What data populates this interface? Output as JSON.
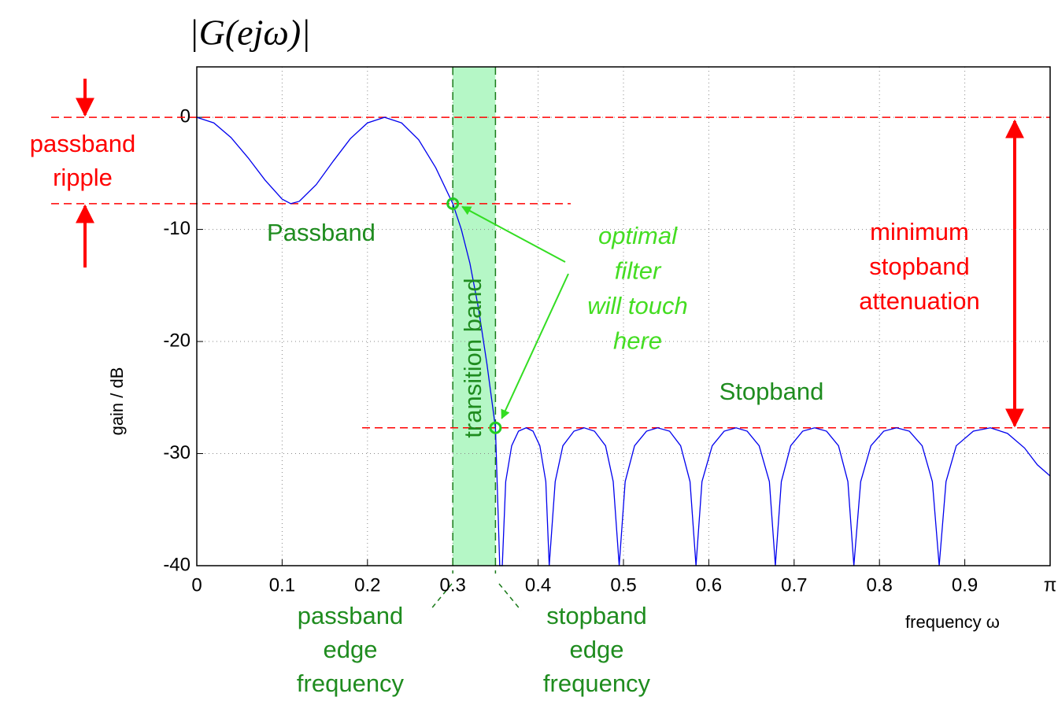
{
  "chart_data": {
    "type": "line",
    "title": "|G(ejω)|",
    "x_label": "frequency ω",
    "y_label": "gain / dB",
    "xlim": [
      0,
      1
    ],
    "ylim": [
      -40,
      4.5
    ],
    "xticks": [
      0,
      0.1,
      0.2,
      0.3,
      0.4,
      0.5,
      0.6,
      0.7,
      0.8,
      0.9,
      {
        "value": 1,
        "label": "π"
      }
    ],
    "yticks": [
      -40,
      -30,
      -20,
      -10,
      0
    ],
    "grid": true,
    "passband_edge": 0.3,
    "stopband_edge": 0.35,
    "passband_ripple_db": -7.7,
    "stopband_level_db": -27.7,
    "series": [
      {
        "color": "#0000ee",
        "x": [
          0,
          0.02,
          0.04,
          0.06,
          0.08,
          0.1,
          0.11,
          0.12,
          0.14,
          0.16,
          0.18,
          0.2,
          0.22,
          0.24,
          0.26,
          0.28,
          0.3,
          0.31,
          0.32,
          0.33,
          0.34,
          0.35,
          0.355,
          0.358,
          0.362,
          0.369,
          0.377,
          0.386,
          0.394,
          0.402,
          0.409,
          0.413,
          0.42,
          0.429,
          0.442,
          0.454,
          0.466,
          0.479,
          0.488,
          0.495,
          0.502,
          0.513,
          0.527,
          0.54,
          0.554,
          0.567,
          0.578,
          0.585,
          0.592,
          0.604,
          0.618,
          0.632,
          0.645,
          0.659,
          0.671,
          0.678,
          0.685,
          0.696,
          0.71,
          0.724,
          0.738,
          0.752,
          0.763,
          0.77,
          0.778,
          0.79,
          0.805,
          0.82,
          0.835,
          0.85,
          0.862,
          0.87,
          0.878,
          0.89,
          0.91,
          0.93,
          0.95,
          0.97,
          0.985,
          1.0
        ],
        "values": [
          0,
          -0.5,
          -1.8,
          -3.6,
          -5.6,
          -7.3,
          -7.7,
          -7.5,
          -6.0,
          -3.9,
          -1.9,
          -0.5,
          0,
          -0.5,
          -2.0,
          -4.5,
          -7.7,
          -10,
          -13,
          -17,
          -22,
          -27.7,
          -40,
          -40,
          -32.5,
          -29.3,
          -28,
          -27.7,
          -28,
          -29.3,
          -32.5,
          -40,
          -32.5,
          -29.3,
          -28,
          -27.7,
          -28,
          -29.3,
          -32.5,
          -40,
          -32.5,
          -29.3,
          -28,
          -27.7,
          -28,
          -29.3,
          -32.5,
          -40,
          -32.5,
          -29.3,
          -28,
          -27.7,
          -28,
          -29.3,
          -32.5,
          -40,
          -32.5,
          -29.3,
          -28,
          -27.7,
          -28,
          -29.3,
          -32.5,
          -40,
          -32.5,
          -29.3,
          -28,
          -27.7,
          -28,
          -29.3,
          -32.5,
          -40,
          -32.5,
          -29.3,
          -28,
          -27.7,
          -28.2,
          -29.5,
          -31,
          -32
        ]
      }
    ],
    "annotations": [
      {
        "lines": [
          "passband",
          "ripple"
        ]
      },
      {
        "lines": [
          "Passband"
        ]
      },
      {
        "lines": [
          "transition band"
        ]
      },
      {
        "lines": [
          "optimal",
          "filter",
          "will touch",
          "here"
        ]
      },
      {
        "lines": [
          "minimum",
          "stopband",
          "attenuation"
        ]
      },
      {
        "lines": [
          "Stopband"
        ]
      },
      {
        "lines": [
          "passband",
          "edge",
          "frequency"
        ]
      },
      {
        "lines": [
          "stopband",
          "edge",
          "frequency"
        ]
      }
    ]
  }
}
